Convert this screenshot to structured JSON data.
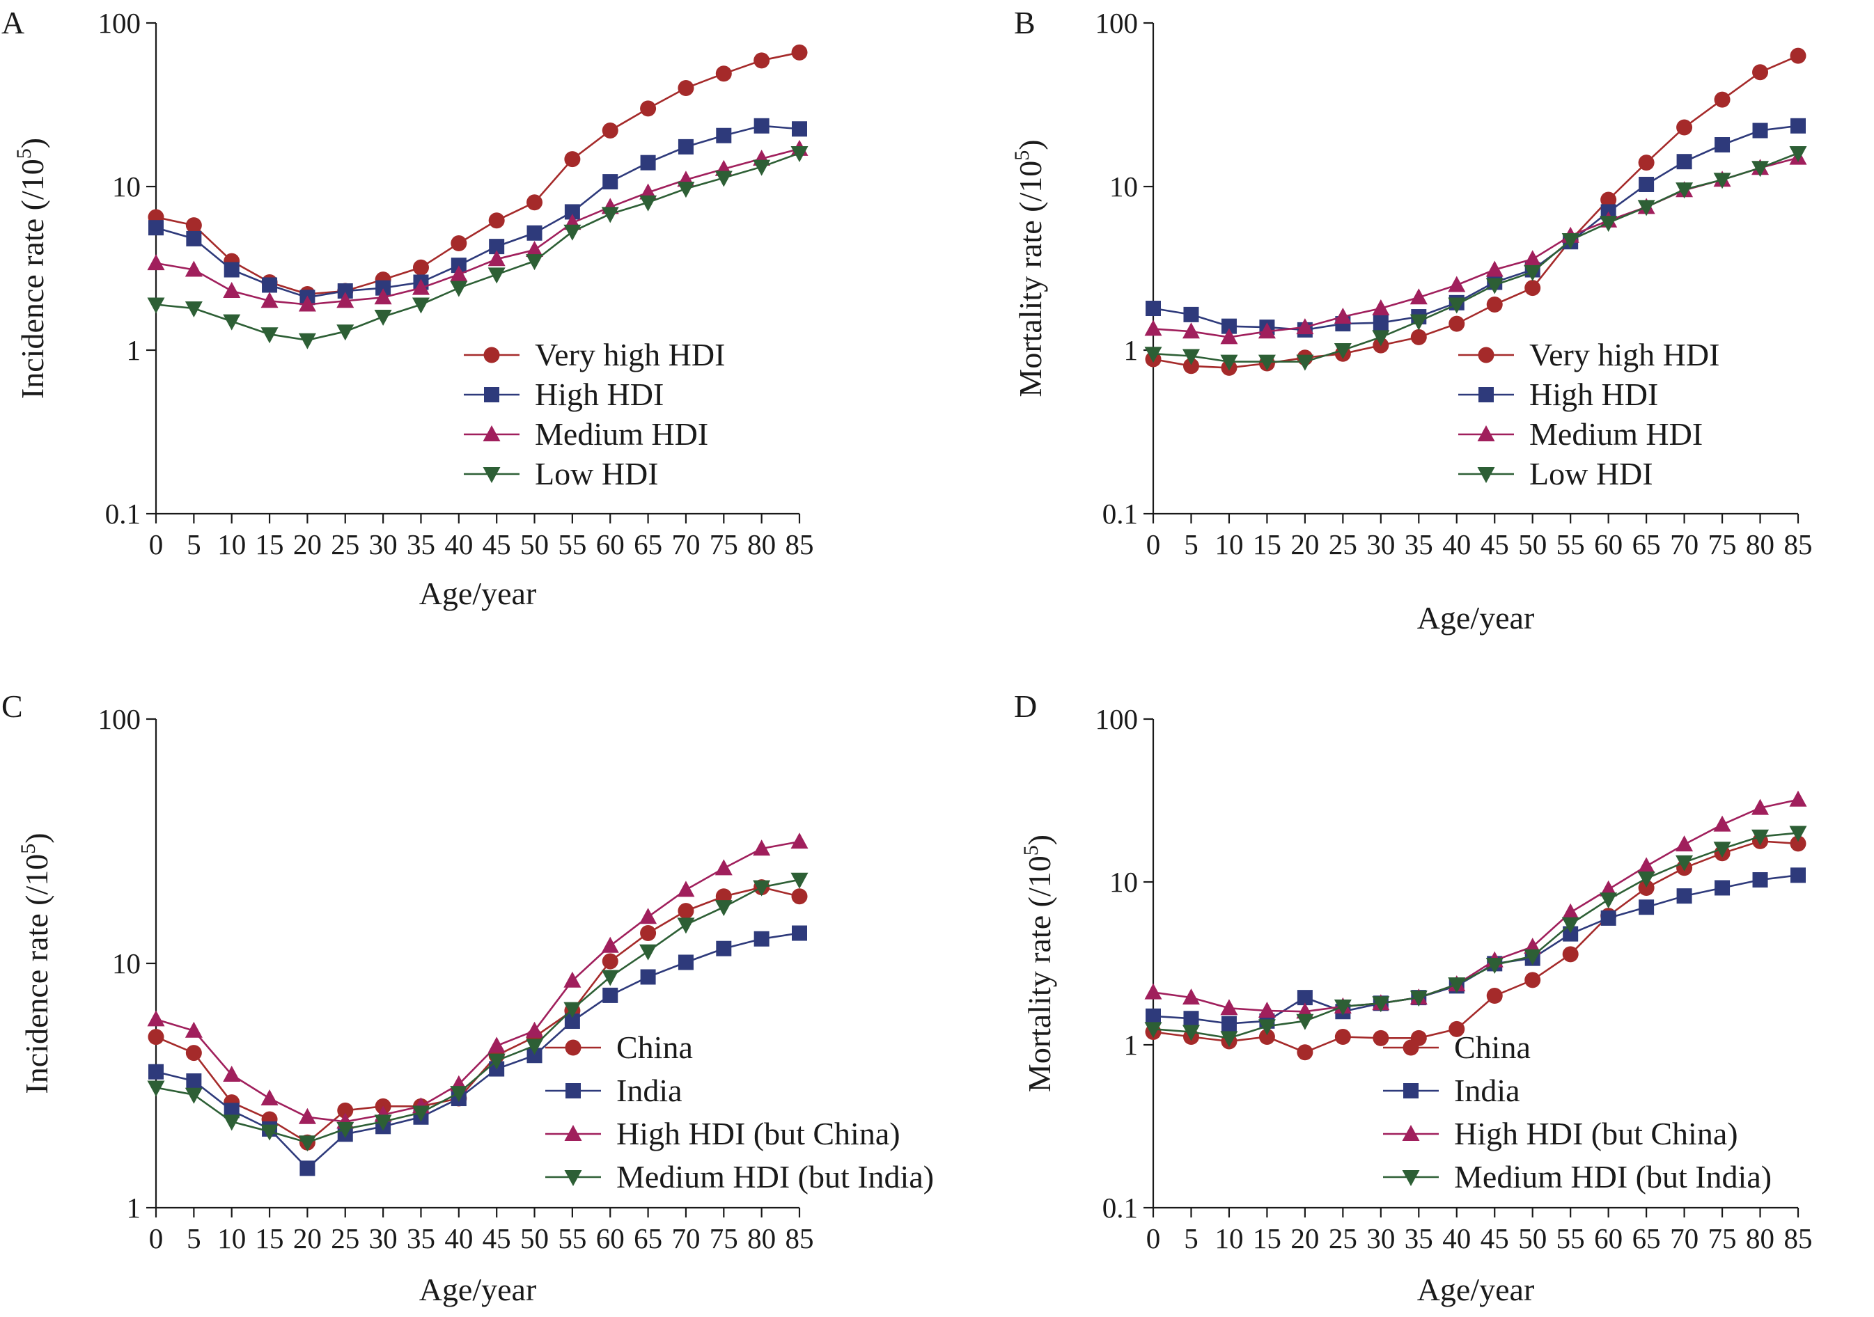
{
  "colors": {
    "red": "#A52A2A",
    "navy": "#2E3A7B",
    "magenta": "#A01F5C",
    "green": "#2D5F35",
    "axis": "#1a1a1a"
  },
  "chart_data": [
    {
      "panel": "A",
      "type": "line",
      "ylabel": "Incidence rate (/10",
      "ylabel_sup": "5",
      "ylabel_close": ")",
      "xlabel": "Age/year",
      "yscale": "log",
      "ylim": [
        0.1,
        100
      ],
      "yticks": [
        0.1,
        1,
        10,
        100
      ],
      "ytick_labels": [
        "0.1",
        "1",
        "10",
        "100"
      ],
      "x": [
        0,
        5,
        10,
        15,
        20,
        25,
        30,
        35,
        40,
        45,
        50,
        55,
        60,
        65,
        70,
        75,
        80,
        85
      ],
      "xtick_labels": [
        "0",
        "5",
        "10",
        "15",
        "20",
        "25",
        "30",
        "35",
        "40",
        "45",
        "50",
        "55",
        "60",
        "65",
        "70",
        "75",
        "80",
        "85"
      ],
      "legend_position": "center-right",
      "series": [
        {
          "name": "Very high HDI",
          "marker": "circle",
          "color": "red",
          "values": [
            6.5,
            5.8,
            3.5,
            2.6,
            2.2,
            2.3,
            2.7,
            3.2,
            4.5,
            6.2,
            8.0,
            14.7,
            22.0,
            30.0,
            40.0,
            49.0,
            59.0,
            66.0
          ]
        },
        {
          "name": "High HDI",
          "marker": "square",
          "color": "navy",
          "values": [
            5.6,
            4.8,
            3.1,
            2.5,
            2.1,
            2.3,
            2.4,
            2.6,
            3.3,
            4.3,
            5.2,
            7.0,
            10.7,
            14.0,
            17.5,
            20.5,
            23.5,
            22.5
          ]
        },
        {
          "name": "Medium HDI",
          "marker": "triangle-up",
          "color": "magenta",
          "values": [
            3.4,
            3.1,
            2.3,
            2.0,
            1.9,
            2.0,
            2.1,
            2.4,
            2.9,
            3.6,
            4.1,
            6.0,
            7.5,
            9.2,
            11.0,
            12.8,
            14.8,
            17.0
          ]
        },
        {
          "name": "Low HDI",
          "marker": "triangle-down",
          "color": "green",
          "values": [
            1.9,
            1.8,
            1.5,
            1.25,
            1.15,
            1.3,
            1.6,
            1.9,
            2.4,
            2.9,
            3.5,
            5.3,
            6.8,
            8.0,
            9.7,
            11.3,
            13.2,
            16.0
          ]
        }
      ]
    },
    {
      "panel": "B",
      "type": "line",
      "ylabel": "Mortality rate (/10",
      "ylabel_sup": "5",
      "ylabel_close": ")",
      "xlabel": "Age/year",
      "yscale": "log",
      "ylim": [
        0.1,
        100
      ],
      "yticks": [
        0.1,
        1,
        10,
        100
      ],
      "ytick_labels": [
        "0.1",
        "1",
        "10",
        "100"
      ],
      "x": [
        0,
        5,
        10,
        15,
        20,
        25,
        30,
        35,
        40,
        45,
        50,
        55,
        60,
        65,
        70,
        75,
        80,
        85
      ],
      "xtick_labels": [
        "0",
        "5",
        "10",
        "15",
        "20",
        "25",
        "30",
        "35",
        "40",
        "45",
        "50",
        "55",
        "60",
        "65",
        "70",
        "75",
        "80",
        "85"
      ],
      "legend_position": "center-right",
      "series": [
        {
          "name": "Very high HDI",
          "marker": "circle",
          "color": "red",
          "values": [
            0.88,
            0.8,
            0.78,
            0.83,
            0.9,
            0.95,
            1.07,
            1.2,
            1.45,
            1.9,
            2.4,
            4.7,
            8.3,
            14.0,
            23.0,
            34.0,
            50.0,
            63.0
          ]
        },
        {
          "name": "High HDI",
          "marker": "square",
          "color": "navy",
          "values": [
            1.8,
            1.65,
            1.4,
            1.38,
            1.33,
            1.45,
            1.47,
            1.6,
            1.95,
            2.6,
            3.1,
            4.6,
            7.0,
            10.3,
            14.2,
            18.0,
            22.0,
            23.5
          ]
        },
        {
          "name": "Medium HDI",
          "marker": "triangle-up",
          "color": "magenta",
          "values": [
            1.35,
            1.3,
            1.2,
            1.3,
            1.38,
            1.6,
            1.8,
            2.1,
            2.5,
            3.1,
            3.6,
            5.0,
            6.2,
            7.5,
            9.5,
            11.0,
            13.0,
            15.0
          ]
        },
        {
          "name": "Low HDI",
          "marker": "triangle-down",
          "color": "green",
          "values": [
            0.95,
            0.92,
            0.85,
            0.85,
            0.85,
            1.0,
            1.2,
            1.5,
            1.9,
            2.5,
            3.0,
            4.7,
            6.0,
            7.5,
            9.6,
            11.0,
            13.0,
            16.0
          ]
        }
      ]
    },
    {
      "panel": "C",
      "type": "line",
      "ylabel": "Incidence rate (/10",
      "ylabel_sup": "5",
      "ylabel_close": ")",
      "xlabel": "Age/year",
      "yscale": "log",
      "ylim": [
        1,
        100
      ],
      "yticks": [
        1,
        10,
        100
      ],
      "ytick_labels": [
        "1",
        "10",
        "100"
      ],
      "x": [
        0,
        5,
        10,
        15,
        20,
        25,
        30,
        35,
        40,
        45,
        50,
        55,
        60,
        65,
        70,
        75,
        80,
        85
      ],
      "xtick_labels": [
        "0",
        "5",
        "10",
        "15",
        "20",
        "25",
        "30",
        "35",
        "40",
        "45",
        "50",
        "55",
        "60",
        "65",
        "70",
        "75",
        "80",
        "85"
      ],
      "legend_position": "bottom-right",
      "series": [
        {
          "name": "China",
          "marker": "circle",
          "color": "red",
          "values": [
            5.0,
            4.3,
            2.7,
            2.3,
            1.85,
            2.5,
            2.6,
            2.6,
            2.8,
            4.2,
            5.0,
            6.4,
            10.2,
            13.3,
            16.4,
            18.8,
            20.5,
            18.8
          ]
        },
        {
          "name": "India",
          "marker": "square",
          "color": "navy",
          "values": [
            3.6,
            3.3,
            2.5,
            2.1,
            1.45,
            2.0,
            2.15,
            2.35,
            2.8,
            3.7,
            4.2,
            5.8,
            7.4,
            8.8,
            10.1,
            11.5,
            12.6,
            13.3
          ]
        },
        {
          "name": "High HDI (but China)",
          "marker": "triangle-up",
          "color": "magenta",
          "values": [
            5.9,
            5.3,
            3.5,
            2.8,
            2.35,
            2.25,
            2.4,
            2.6,
            3.2,
            4.6,
            5.3,
            8.5,
            11.8,
            15.5,
            20.0,
            24.5,
            29.5,
            31.5
          ]
        },
        {
          "name": "Medium HDI (but India)",
          "marker": "triangle-down",
          "color": "green",
          "values": [
            3.1,
            2.9,
            2.25,
            2.05,
            1.85,
            2.1,
            2.25,
            2.45,
            2.95,
            4.0,
            4.6,
            6.5,
            8.8,
            11.2,
            14.4,
            17.0,
            20.5,
            22.0
          ]
        }
      ]
    },
    {
      "panel": "D",
      "type": "line",
      "ylabel": "Mortality rate (/10",
      "ylabel_sup": "5",
      "ylabel_close": ")",
      "xlabel": "Age/year",
      "yscale": "log",
      "ylim": [
        0.1,
        100
      ],
      "yticks": [
        0.1,
        1,
        10,
        100
      ],
      "ytick_labels": [
        "0.1",
        "1",
        "10",
        "100"
      ],
      "x": [
        0,
        5,
        10,
        15,
        20,
        25,
        30,
        35,
        40,
        45,
        50,
        55,
        60,
        65,
        70,
        75,
        80,
        85
      ],
      "xtick_labels": [
        "0",
        "5",
        "10",
        "15",
        "20",
        "25",
        "30",
        "35",
        "40",
        "45",
        "50",
        "55",
        "60",
        "65",
        "70",
        "75",
        "80",
        "85"
      ],
      "legend_position": "bottom-right",
      "series": [
        {
          "name": "China",
          "marker": "circle",
          "color": "red",
          "values": [
            1.2,
            1.12,
            1.05,
            1.12,
            0.9,
            1.12,
            1.1,
            1.1,
            1.25,
            2.0,
            2.5,
            3.6,
            6.2,
            9.2,
            12.2,
            15.0,
            17.8,
            17.2
          ]
        },
        {
          "name": "India",
          "marker": "square",
          "color": "navy",
          "values": [
            1.5,
            1.45,
            1.35,
            1.4,
            1.95,
            1.6,
            1.8,
            1.95,
            2.3,
            3.15,
            3.4,
            4.8,
            6.0,
            7.0,
            8.2,
            9.2,
            10.3,
            11.0
          ]
        },
        {
          "name": "High HDI (but China)",
          "marker": "triangle-up",
          "color": "magenta",
          "values": [
            2.1,
            1.95,
            1.68,
            1.62,
            1.6,
            1.72,
            1.8,
            1.95,
            2.35,
            3.3,
            4.0,
            6.5,
            9.0,
            12.5,
            17.0,
            22.5,
            28.5,
            32.0
          ]
        },
        {
          "name": "Medium HDI (but India)",
          "marker": "triangle-down",
          "color": "green",
          "values": [
            1.25,
            1.2,
            1.1,
            1.3,
            1.4,
            1.72,
            1.8,
            1.95,
            2.35,
            3.1,
            3.5,
            5.5,
            7.8,
            10.5,
            13.2,
            16.0,
            19.0,
            20.0
          ]
        }
      ]
    }
  ]
}
